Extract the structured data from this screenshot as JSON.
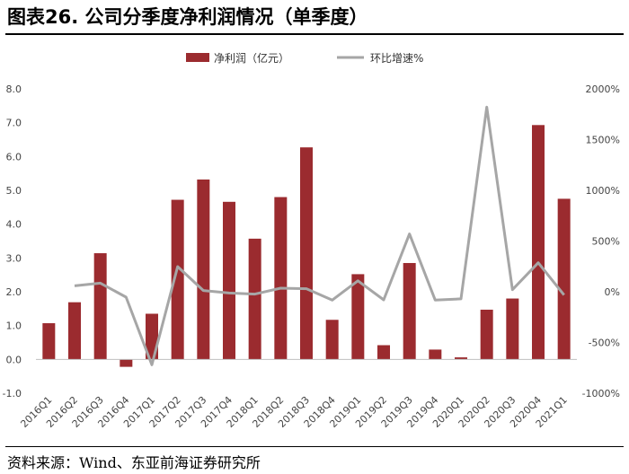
{
  "figure": {
    "title": "图表26. 公司分季度净利润情况（单季度）",
    "source": "资料来源：Wind、东亚前海证券研究所"
  },
  "colors": {
    "bar": "#9b2b2f",
    "line": "#a6a6a6",
    "axis_text": "#444444"
  },
  "chart_data": {
    "type": "bar",
    "categories": [
      "2016Q1",
      "2016Q2",
      "2016Q3",
      "2016Q4",
      "2017Q1",
      "2017Q2",
      "2017Q3",
      "2017Q4",
      "2018Q1",
      "2018Q2",
      "2018Q3",
      "2018Q4",
      "2019Q1",
      "2019Q2",
      "2019Q3",
      "2019Q4",
      "2020Q1",
      "2020Q2",
      "2020Q3",
      "2020Q4",
      "2021Q1"
    ],
    "series": [
      {
        "name": "净利润（亿元）",
        "type": "bar",
        "axis": "left",
        "values": [
          1.07,
          1.69,
          3.14,
          -0.22,
          1.35,
          4.72,
          5.32,
          4.66,
          3.57,
          4.8,
          6.27,
          1.17,
          2.52,
          0.42,
          2.85,
          0.29,
          0.06,
          1.47,
          1.8,
          6.93,
          4.75
        ]
      },
      {
        "name": "环比增速%",
        "type": "line",
        "axis": "right",
        "values": [
          null,
          58,
          85,
          -53,
          -720,
          248,
          12,
          -12,
          -23,
          35,
          30,
          -82,
          108,
          -80,
          570,
          -81,
          -70,
          1820,
          20,
          286,
          -32
        ]
      }
    ],
    "ylim_left": [
      -1.0,
      8.0
    ],
    "yticks_left": [
      "-1.0",
      "0.0",
      "1.0",
      "2.0",
      "3.0",
      "4.0",
      "5.0",
      "6.0",
      "7.0",
      "8.0"
    ],
    "ylim_right": [
      -1000,
      2000
    ],
    "yticks_right": [
      "-1000%",
      "-500%",
      "0%",
      "500%",
      "1000%",
      "1500%",
      "2000%"
    ],
    "legend_position": "top-center",
    "grid": false
  }
}
